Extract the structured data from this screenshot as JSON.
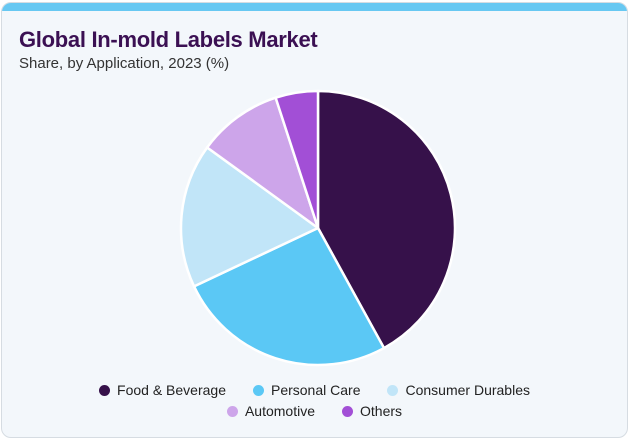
{
  "header": {
    "title": "Global In-mold Labels Market",
    "subtitle": "Share, by Application, 2023 (%)"
  },
  "chart_data": {
    "type": "pie",
    "title": "Global In-mold Labels Market",
    "subtitle": "Share, by Application, 2023 (%)",
    "unit": "%",
    "labels": [
      "Food & Beverage",
      "Personal Care",
      "Consumer Durables",
      "Automotive",
      "Others"
    ],
    "values": [
      42,
      26,
      17,
      10,
      5
    ],
    "colors": [
      "#36114a",
      "#5bc8f5",
      "#c1e5f8",
      "#cda5ea",
      "#a24fd6"
    ],
    "start_angle_deg": 0,
    "direction": "clockwise",
    "slice_gap_color": "#ffffff",
    "legend_position": "bottom",
    "data_labels_shown": false
  },
  "legend": {
    "rows": [
      [
        0,
        1,
        2
      ],
      [
        3,
        4
      ]
    ]
  },
  "colors": {
    "accent_bar": "#67c8f2",
    "card_background": "#f3f7fb",
    "card_border": "#d6dce2",
    "title_text": "#3b1053",
    "subtitle_text": "#333333",
    "legend_text": "#222222"
  }
}
